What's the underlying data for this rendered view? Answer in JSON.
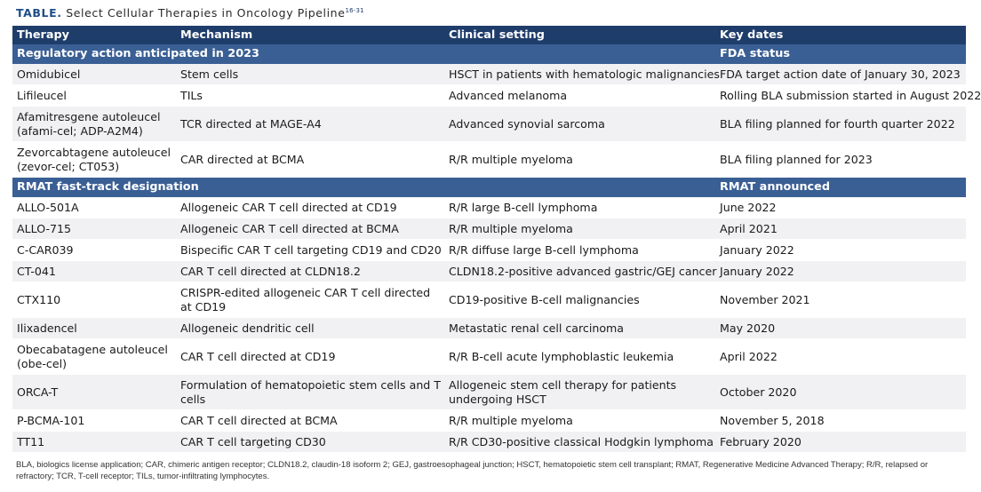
{
  "title": {
    "label": "TABLE.",
    "text": "Select Cellular Therapies in Oncology Pipeline",
    "refs": "16-31"
  },
  "headers": [
    "Therapy",
    "Mechanism",
    "Clinical setting",
    "Key dates"
  ],
  "sections": [
    {
      "heading": "Regulatory action anticipated in 2023",
      "date_heading": "FDA status",
      "rows": [
        [
          "Omidubicel",
          "Stem cells",
          "HSCT in patients with hematologic malignancies",
          "FDA target action date of January 30, 2023"
        ],
        [
          "Lifileucel",
          "TILs",
          "Advanced melanoma",
          "Rolling BLA submission started in August 2022"
        ],
        [
          "Afamitresgene autoleucel (afami-cel; ADP-A2M4)",
          "TCR directed at MAGE-A4",
          "Advanced synovial sarcoma",
          "BLA filing planned for fourth quarter 2022"
        ],
        [
          "Zevorcabtagene autoleucel (zevor-cel; CT053)",
          "CAR directed at BCMA",
          "R/R multiple myeloma",
          "BLA filing planned for 2023"
        ]
      ]
    },
    {
      "heading": "RMAT fast-track designation",
      "date_heading": "RMAT announced",
      "rows": [
        [
          "ALLO-501A",
          "Allogeneic CAR T cell directed at CD19",
          "R/R large B-cell lymphoma",
          "June 2022"
        ],
        [
          "ALLO-715",
          "Allogeneic CAR T cell directed at BCMA",
          "R/R multiple myeloma",
          "April 2021"
        ],
        [
          "C-CAR039",
          "Bispecific CAR T cell targeting CD19 and CD20",
          "R/R diffuse large B-cell lymphoma",
          "January 2022"
        ],
        [
          "CT-041",
          "CAR T cell directed at CLDN18.2",
          "CLDN18.2-positive advanced  gastric/GEJ cancer",
          "January 2022"
        ],
        [
          "CTX110",
          "CRISPR-edited allogeneic CAR T cell directed at CD19",
          "CD19-positive B-cell malignancies",
          "November 2021"
        ],
        [
          "Ilixadencel",
          "Allogeneic dendritic cell",
          "Metastatic renal cell carcinoma",
          "May 2020"
        ],
        [
          "Obecabatagene autoleucel (obe-cel)",
          "CAR T cell directed at CD19",
          "R/R B-cell acute lymphoblastic leukemia",
          "April 2022"
        ],
        [
          "ORCA-T",
          "Formulation of hematopoietic stem cells and T cells",
          "Allogeneic stem cell therapy for patients undergoing HSCT",
          "October 2020"
        ],
        [
          "P-BCMA-101",
          "CAR T cell directed at BCMA",
          "R/R multiple myeloma",
          "November 5, 2018"
        ],
        [
          "TT11",
          "CAR T cell targeting CD30",
          "R/R CD30-positive classical Hodgkin lymphoma",
          "February 2020"
        ]
      ]
    }
  ],
  "footnote": "BLA, biologics license application; CAR, chimeric antigen receptor; CLDN18.2, claudin-18 isoform 2; GEJ, gastroesophageal junction; HSCT, hematopoietic stem cell transplant; RMAT, Regenerative Medicine Advanced Therapy; R/R, relapsed or refractory; TCR, T-cell receptor; TILs, tumor-infiltrating lymphocytes.",
  "colors": {
    "header_bg": "#1f3d6b",
    "section_bg": "#3a5f94",
    "stripe_bg": "#f1f1f3",
    "title_label": "#1f4e8a"
  }
}
